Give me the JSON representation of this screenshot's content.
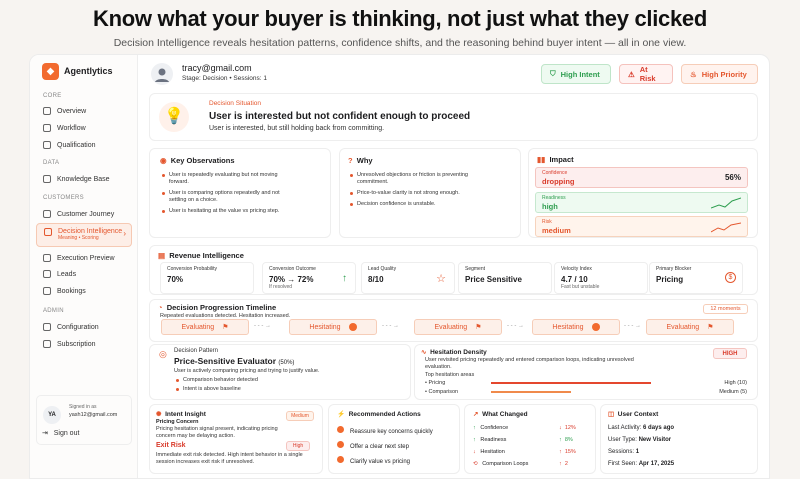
{
  "hero": {
    "title": "Know what your buyer is thinking, not just what they clicked",
    "subtitle": "Decision Intelligence reveals hesitation patterns, confidence shifts, and the reasoning behind buyer intent — all in one view."
  },
  "app": {
    "name": "Agentlytics",
    "accent": "#f26a2e"
  },
  "sidebar": {
    "sections": {
      "core": "CORE",
      "data": "DATA",
      "customers": "CUSTOMERS",
      "admin": "ADMIN"
    },
    "items": {
      "overview": "Overview",
      "workflow": "Workflow",
      "qualification": "Qualification",
      "knowledge_base": "Knowledge Base",
      "customer_journey": "Customer Journey",
      "decision_intelligence": "Decision Intelligence",
      "decision_sub": "Meaning • Scoring",
      "execution_preview": "Execution Preview",
      "leads": "Leads",
      "bookings": "Bookings",
      "configuration": "Configuration",
      "subscription": "Subscription"
    },
    "user": {
      "initials": "YA",
      "signed_in_label": "Signed in as",
      "email": "yash12@gmail.com",
      "sign_out": "Sign out"
    }
  },
  "header": {
    "email": "tracy@gmail.com",
    "meta": "Stage: Decision  •  Sessions: 1",
    "chips": {
      "high_intent": "High Intent",
      "at_risk": "At Risk",
      "high_priority": "High Priority"
    }
  },
  "situation": {
    "label": "Decision Situation",
    "title": "User is interested but not confident enough to proceed",
    "desc": "User is interested, but still holding back from committing."
  },
  "observations": {
    "title": "Key Observations",
    "items": [
      "User is repeatedly evaluating but not moving forward.",
      "User is comparing options repeatedly and not settling on a choice.",
      "User is hesitating at the value vs pricing step."
    ]
  },
  "why": {
    "title": "Why",
    "items": [
      "Unresolved objections or friction is preventing commitment.",
      "Price-to-value clarity is not strong enough.",
      "Decision confidence is unstable."
    ]
  },
  "impact": {
    "title": "Impact",
    "confidence_label": "Confidence",
    "confidence_value": "dropping",
    "confidence_pct": "56%",
    "readiness_label": "Readiness",
    "readiness_value": "high",
    "risk_label": "Risk",
    "risk_value": "medium"
  },
  "revenue": {
    "title": "Revenue Intelligence",
    "metrics": {
      "prob_label": "Conversion Probability",
      "prob_value": "70%",
      "outcome_label": "Conversion Outcome",
      "outcome_value": "70% → 72%",
      "outcome_note": "If resolved",
      "quality_label": "Lead Quality",
      "quality_value": "8/10",
      "segment_label": "Segment",
      "segment_value": "Price Sensitive",
      "velocity_label": "Velocity Index",
      "velocity_value": "4.7 / 10",
      "velocity_note": "Fast but unstable",
      "blocker_label": "Primary Blocker",
      "blocker_value": "Pricing"
    }
  },
  "timeline": {
    "title": "Decision Progression Timeline",
    "subtitle": "Repeated evaluations detected. Hesitation increased.",
    "badge": "12 moments",
    "steps": [
      "Evaluating",
      "Hesitating",
      "Evaluating",
      "Hesitating",
      "Evaluating"
    ]
  },
  "pattern": {
    "label": "Decision Pattern",
    "title": "Price-Sensitive Evaluator",
    "pct": "(50%)",
    "desc": "User is actively comparing pricing and trying to justify value.",
    "items": [
      "Comparison behavior detected",
      "Intent is above baseline"
    ]
  },
  "density": {
    "title": "Hesitation Density",
    "badge": "HIGH",
    "desc": "User revisited pricing repeatedly and entered comparison loops, indicating unresolved evaluation.",
    "areas_label": "Top hesitation areas",
    "areas": [
      {
        "name": "Pricing",
        "level": "High (10)",
        "fill": 1.0
      },
      {
        "name": "Comparison",
        "level": "Medium (5)",
        "fill": 0.5
      }
    ]
  },
  "intent": {
    "title": "Intent Insight",
    "item1_title": "Pricing Concern",
    "item1_badge": "Medium",
    "item1_desc": "Pricing hesitation signal present, indicating pricing concern may be delaying action.",
    "item2_title": "Exit Risk",
    "item2_badge": "High",
    "item2_desc": "Immediate exit risk detected. High intent behavior in a single session increases exit risk if unresolved."
  },
  "actions": {
    "title": "Recommended Actions",
    "items": [
      "Reassure key concerns quickly",
      "Offer a clear next step",
      "Clarify value vs pricing"
    ]
  },
  "changed": {
    "title": "What Changed",
    "rows": [
      {
        "name": "Confidence",
        "delta": "12%",
        "dir": "↓"
      },
      {
        "name": "Readiness",
        "delta": "8%",
        "dir": "↑"
      },
      {
        "name": "Hesitation",
        "delta": "15%",
        "dir": "↑"
      },
      {
        "name": "Comparison Loops",
        "delta": "2",
        "dir": "↑"
      }
    ]
  },
  "context": {
    "title": "User Context",
    "rows": [
      {
        "k": "Last Activity:",
        "v": "6 days ago"
      },
      {
        "k": "User Type:",
        "v": "New Visitor"
      },
      {
        "k": "Sessions:",
        "v": "1"
      },
      {
        "k": "First Seen:",
        "v": "Apr 17, 2025"
      }
    ]
  }
}
